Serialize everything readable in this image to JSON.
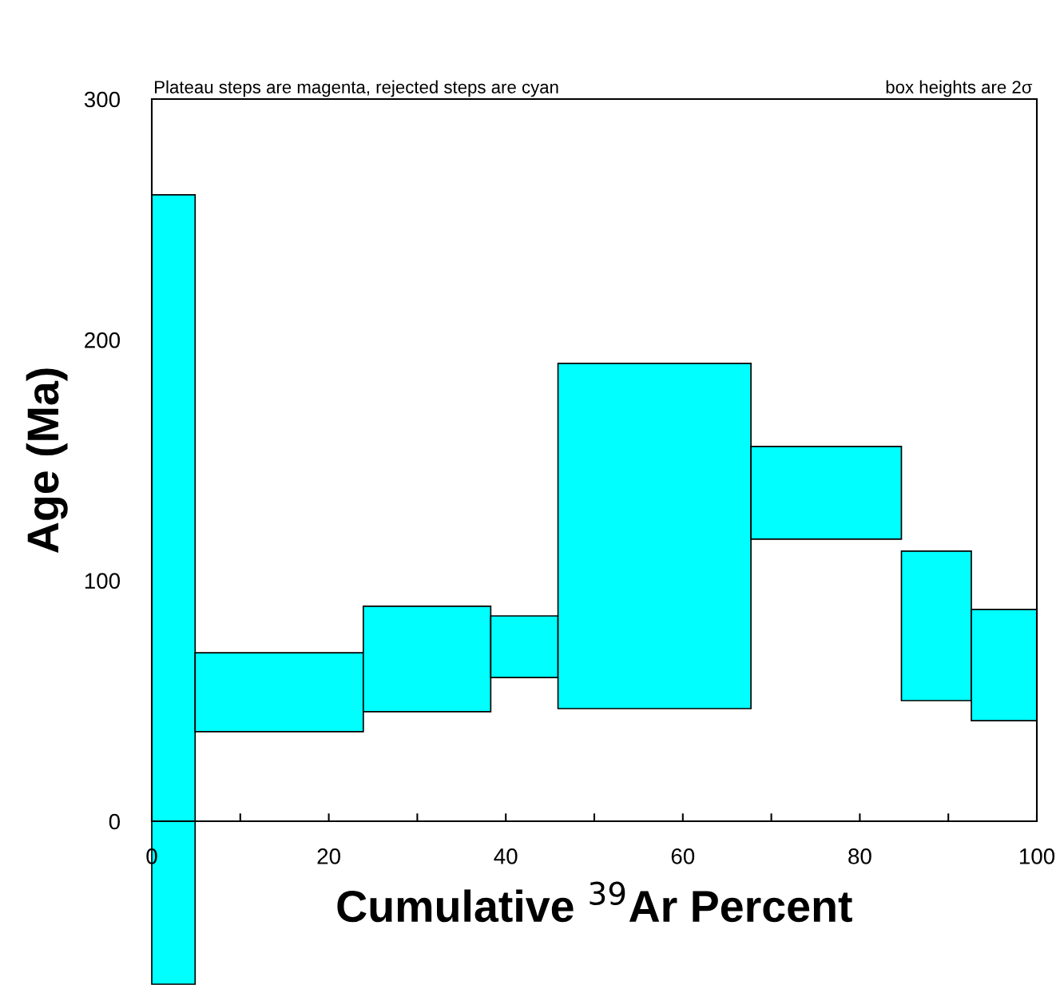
{
  "chart_data": {
    "type": "histogram",
    "bins": [
      0,
      4.9,
      23.9,
      38.3,
      45.9,
      67.7,
      84.7,
      92.6,
      100
    ],
    "values": [
      327.9,
      32.8,
      43.8,
      25.6,
      143.4,
      38.5,
      62.1,
      46.2
    ],
    "base": [
      -67.7,
      37.2,
      45.5,
      59.7,
      46.8,
      117.2,
      50.1,
      41.8
    ],
    "color": "#00ffff",
    "xlabel": "Cumulative $^{39}$Ar Percent",
    "ylabel": "Age (Ma)",
    "xlim": [
      0,
      100
    ],
    "xticks": [
      0,
      {
        "value": 10,
        "label": null
      },
      20,
      {
        "value": 30,
        "label": null
      },
      40,
      {
        "value": 50,
        "label": null
      },
      60,
      {
        "value": 70,
        "label": null
      },
      80,
      {
        "value": 90,
        "label": null
      },
      100
    ],
    "ylim": [
      0,
      300
    ],
    "yticks": [
      0,
      100,
      200,
      300
    ],
    "grid": false,
    "annotations": [
      "Plateau steps are magenta, rejected steps are cyan",
      "box heights are 2σ"
    ]
  }
}
